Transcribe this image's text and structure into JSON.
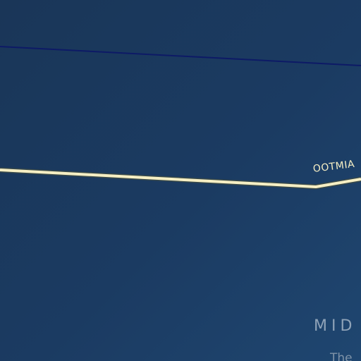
{
  "map": {
    "route_label": "OOTMIA",
    "region_label": "MID",
    "place_label": "The",
    "colors": {
      "background": "#1b3b62",
      "highway": "#f6efc4",
      "boundary": "#0d1a66"
    }
  }
}
